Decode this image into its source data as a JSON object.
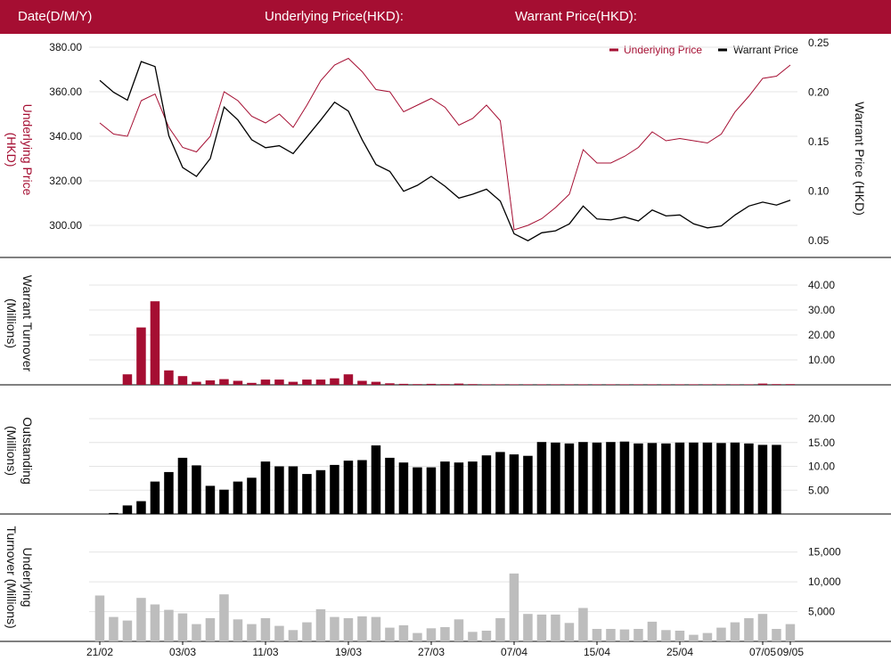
{
  "header": {
    "date_label": "Date(D/M/Y)",
    "underlying_label": "Underlying Price(HKD):",
    "warrant_label": "Warrant Price(HKD):"
  },
  "colors": {
    "header": "#a50e32",
    "underlying": "#a50e32",
    "warrant": "#000000",
    "outstanding": "#000000",
    "underlying_turnover": "#bdbdbd"
  },
  "chart_data": [
    {
      "type": "line",
      "legend": [
        "Underlying Price",
        "Warrant Price"
      ],
      "legend_position": "top-right",
      "y_left_label_1": "Underlying Price",
      "y_left_label_2": "(HKD)",
      "y_right_label": "Warrant  Price (HKD)",
      "y_left_ticks": [
        "300.00",
        "320.00",
        "340.00",
        "360.00",
        "380.00"
      ],
      "y_left_lim": [
        286,
        382
      ],
      "y_right_ticks": [
        "0.05",
        "0.10",
        "0.15",
        "0.20",
        "0.25"
      ],
      "y_right_lim": [
        0.034,
        0.25
      ],
      "series": [
        {
          "name": "Underlying Price",
          "axis": "left",
          "values": [
            346,
            341,
            340,
            356,
            359,
            344,
            335,
            333,
            340,
            360,
            356,
            349,
            346,
            350,
            344,
            354,
            365,
            372,
            375,
            369,
            361,
            360,
            351,
            354,
            357,
            353,
            345,
            348,
            354,
            347,
            298,
            300,
            303,
            308,
            314,
            334,
            328,
            328,
            331,
            335,
            342,
            338,
            339,
            338,
            337,
            341,
            351,
            358,
            366,
            367,
            372
          ]
        },
        {
          "name": "Warrant Price",
          "axis": "right",
          "values": [
            0.212,
            0.2,
            0.192,
            0.231,
            0.226,
            0.156,
            0.124,
            0.115,
            0.133,
            0.185,
            0.172,
            0.152,
            0.144,
            0.146,
            0.138,
            0.155,
            0.172,
            0.19,
            0.181,
            0.152,
            0.127,
            0.12,
            0.1,
            0.106,
            0.115,
            0.105,
            0.093,
            0.097,
            0.102,
            0.09,
            0.057,
            0.05,
            0.058,
            0.06,
            0.067,
            0.085,
            0.072,
            0.071,
            0.074,
            0.07,
            0.081,
            0.075,
            0.076,
            0.067,
            0.063,
            0.065,
            0.076,
            0.085,
            0.089,
            0.086,
            0.091
          ]
        }
      ]
    },
    {
      "type": "bar",
      "ylabel_1": "Warrant  Turnover",
      "ylabel_2": "(Millions)",
      "y_ticks": [
        "10.00",
        "20.00",
        "30.00",
        "40.00"
      ],
      "ylim": [
        0,
        40
      ],
      "values": [
        0,
        0,
        4.2,
        23,
        33.5,
        5.8,
        3.5,
        1.2,
        1.8,
        2.3,
        1.6,
        0.8,
        2.1,
        2.1,
        1.2,
        2.1,
        2.1,
        2.6,
        4.2,
        1.6,
        1.2,
        0.6,
        0.4,
        0.3,
        0.4,
        0.3,
        0.5,
        0.3,
        0.2,
        0.2,
        0.2,
        0.2,
        0.2,
        0.2,
        0.2,
        0.2,
        0.2,
        0.2,
        0.2,
        0.2,
        0.2,
        0.2,
        0.2,
        0.2,
        0.2,
        0.2,
        0.2,
        0.2,
        0.5,
        0.3,
        0.3
      ]
    },
    {
      "type": "bar",
      "ylabel_1": "Outstanding",
      "ylabel_2": "(Millions)",
      "y_ticks": [
        "5.00",
        "10.00",
        "15.00",
        "20.00"
      ],
      "ylim": [
        0,
        20
      ],
      "values": [
        0,
        0.2,
        1.8,
        2.7,
        6.8,
        8.8,
        11.8,
        10.2,
        5.9,
        5.1,
        6.8,
        7.6,
        11,
        10,
        10,
        8.4,
        9.2,
        10.3,
        11.2,
        11.3,
        14.4,
        11.8,
        10.8,
        9.8,
        9.8,
        11,
        10.8,
        11,
        12.3,
        13,
        12.5,
        12.2,
        15.1,
        15,
        14.8,
        15.1,
        15,
        15.1,
        15.2,
        14.8,
        14.9,
        14.8,
        15,
        15,
        15,
        14.9,
        15,
        14.8,
        14.5,
        14.5,
        0
      ]
    },
    {
      "type": "bar",
      "ylabel_1": "Underlying",
      "ylabel_2": "Turnover (Millions)",
      "y_ticks": [
        "5,000",
        "10,000",
        "15,000"
      ],
      "ylim": [
        0,
        16000
      ],
      "x_ticks": [
        "21/02",
        "03/03",
        "11/03",
        "19/03",
        "27/03",
        "07/04",
        "15/04",
        "25/04",
        "07/05",
        "09/05"
      ],
      "values": [
        7700,
        4100,
        3500,
        7300,
        6200,
        5300,
        4700,
        2900,
        3900,
        7900,
        3700,
        2900,
        3900,
        2600,
        1900,
        3200,
        5400,
        4100,
        3900,
        4200,
        4100,
        2300,
        2700,
        1400,
        2200,
        2400,
        3700,
        1600,
        1800,
        3900,
        11400,
        4600,
        4500,
        4500,
        3100,
        5600,
        2100,
        2100,
        2000,
        2100,
        3300,
        1900,
        1800,
        1100,
        1400,
        2300,
        3200,
        3900,
        4600,
        2100,
        2900
      ]
    }
  ]
}
